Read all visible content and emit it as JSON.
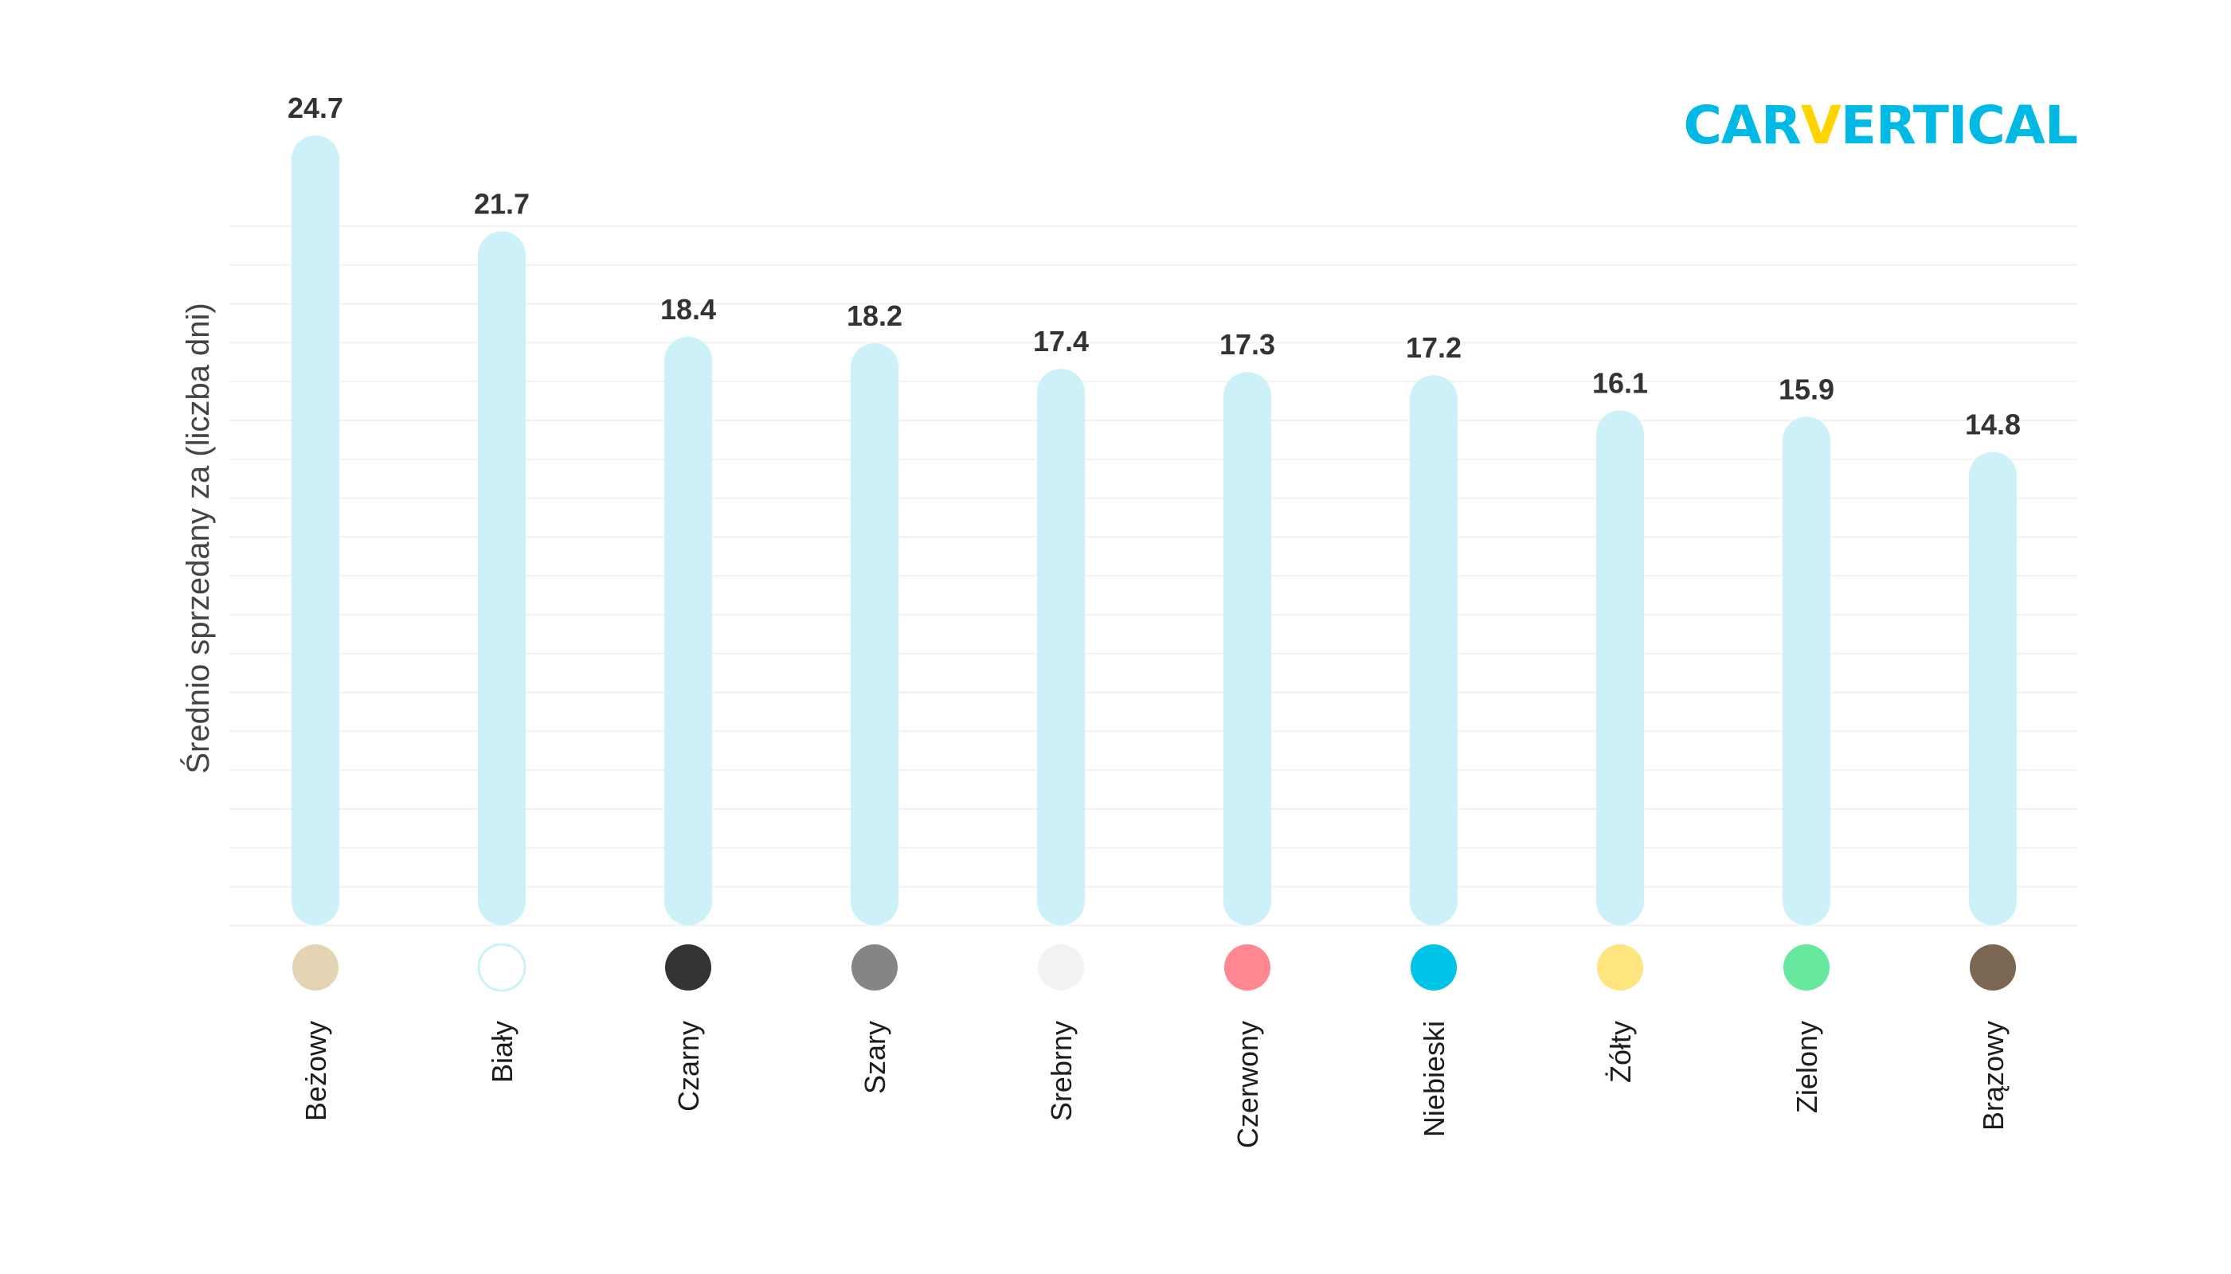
{
  "logo": {
    "part1": "CAR",
    "part2": "V",
    "part3": "ERTICAL",
    "color_main": "#00b9e4",
    "color_accent": "#ffd400"
  },
  "chart_data": {
    "type": "bar",
    "ylabel": "Średnio sprzedany za (liczba dni)",
    "xlabel": "",
    "ylim": [
      0,
      24.7
    ],
    "grid": true,
    "categories": [
      "Beżowy",
      "Biały",
      "Czarny",
      "Szary",
      "Srebrny",
      "Czerwony",
      "Niebieski",
      "Żółty",
      "Zielony",
      "Brązowy"
    ],
    "values": [
      24.7,
      21.7,
      18.4,
      18.2,
      17.4,
      17.3,
      17.2,
      16.1,
      15.9,
      14.8
    ],
    "value_labels": [
      "24.7",
      "21.7",
      "18.4",
      "18.2",
      "17.4",
      "17.3",
      "17.2",
      "16.1",
      "15.9",
      "14.8"
    ],
    "bar_color": "#cdf1f9",
    "swatch_colors": [
      "#e5d4b4",
      "#ffffff",
      "#333333",
      "#858585",
      "#f2f2f2",
      "#ff8791",
      "#00c3e8",
      "#ffe57d",
      "#66e89e",
      "#7a6652"
    ]
  }
}
